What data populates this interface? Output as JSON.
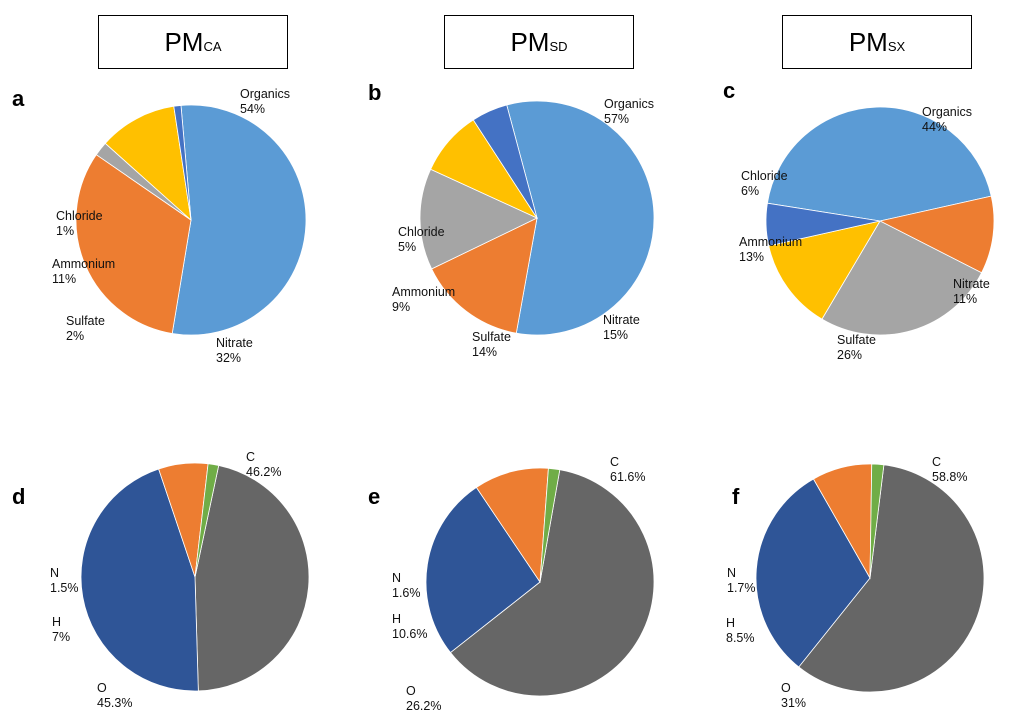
{
  "headers": [
    {
      "main": "PM",
      "sub": "CA"
    },
    {
      "main": "PM",
      "sub": "SD"
    },
    {
      "main": "PM",
      "sub": "SX"
    }
  ],
  "colors": {
    "Organics": "#5b9bd5",
    "Chloride": "#4472c4",
    "Ammonium": "#ffc000",
    "Sulfate": "#a5a5a5",
    "Nitrate": "#ed7d31",
    "C": "#666666",
    "N": "#70ad47",
    "H": "#ed7d31",
    "O": "#2f5597"
  },
  "chart_data": [
    {
      "type": "pie",
      "panel": "a",
      "slices": [
        {
          "label": "Organics",
          "value": 54,
          "text": "54%"
        },
        {
          "label": "Nitrate",
          "value": 32,
          "text": "32%"
        },
        {
          "label": "Sulfate",
          "value": 2,
          "text": "2%"
        },
        {
          "label": "Ammonium",
          "value": 11,
          "text": "11%"
        },
        {
          "label": "Chloride",
          "value": 1,
          "text": "1%"
        }
      ]
    },
    {
      "type": "pie",
      "panel": "b",
      "slices": [
        {
          "label": "Organics",
          "value": 57,
          "text": "57%"
        },
        {
          "label": "Nitrate",
          "value": 15,
          "text": "15%"
        },
        {
          "label": "Sulfate",
          "value": 14,
          "text": "14%"
        },
        {
          "label": "Ammonium",
          "value": 9,
          "text": "9%"
        },
        {
          "label": "Chloride",
          "value": 5,
          "text": "5%"
        }
      ]
    },
    {
      "type": "pie",
      "panel": "c",
      "slices": [
        {
          "label": "Organics",
          "value": 44,
          "text": "44%"
        },
        {
          "label": "Nitrate",
          "value": 11,
          "text": "11%"
        },
        {
          "label": "Sulfate",
          "value": 26,
          "text": "26%"
        },
        {
          "label": "Ammonium",
          "value": 13,
          "text": "13%"
        },
        {
          "label": "Chloride",
          "value": 6,
          "text": "6%"
        }
      ]
    },
    {
      "type": "pie",
      "panel": "d",
      "slices": [
        {
          "label": "C",
          "value": 46.2,
          "text": "46.2%"
        },
        {
          "label": "O",
          "value": 45.3,
          "text": "45.3%"
        },
        {
          "label": "H",
          "value": 7,
          "text": "7%"
        },
        {
          "label": "N",
          "value": 1.5,
          "text": "1.5%"
        }
      ]
    },
    {
      "type": "pie",
      "panel": "e",
      "slices": [
        {
          "label": "C",
          "value": 61.6,
          "text": "61.6%"
        },
        {
          "label": "O",
          "value": 26.2,
          "text": "26.2%"
        },
        {
          "label": "H",
          "value": 10.6,
          "text": "10.6%"
        },
        {
          "label": "N",
          "value": 1.6,
          "text": "1.6%"
        }
      ]
    },
    {
      "type": "pie",
      "panel": "f",
      "slices": [
        {
          "label": "C",
          "value": 58.8,
          "text": "58.8%"
        },
        {
          "label": "O",
          "value": 31,
          "text": "31%"
        },
        {
          "label": "H",
          "value": 8.5,
          "text": "8.5%"
        },
        {
          "label": "N",
          "value": 1.7,
          "text": "1.7%"
        }
      ]
    }
  ]
}
